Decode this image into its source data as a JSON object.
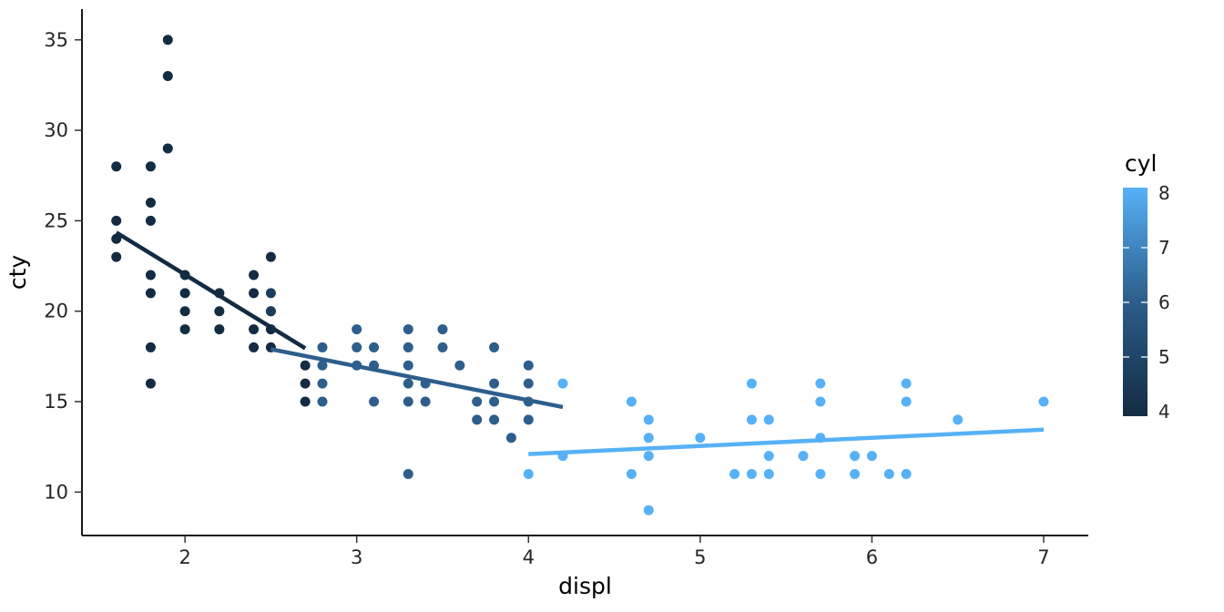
{
  "chart_data": {
    "type": "scatter",
    "title": "",
    "xlabel": "displ",
    "ylabel": "cty",
    "x_ticks": [
      2,
      3,
      4,
      5,
      6,
      7
    ],
    "y_ticks": [
      10,
      15,
      20,
      25,
      30,
      35
    ],
    "x_range": [
      1.4,
      7.26
    ],
    "y_range": [
      7.6,
      36.7
    ],
    "grid": false,
    "theme": {
      "background": "#ffffff",
      "axis_line_color": "#1a1a1a",
      "tick_color": "#333333",
      "tick_label_color": "#262626",
      "axis_title_color": "#000000"
    },
    "legend": {
      "title": "cyl",
      "type": "colorbar",
      "position": "right",
      "ticks": [
        4,
        5,
        6,
        7,
        8
      ],
      "low_value": 4,
      "high_value": 8,
      "low_color": "#132B43",
      "mid_color": "#2C5D8A",
      "high_color": "#56B1F7"
    },
    "series": [
      {
        "name": "cyl-4",
        "cyl": 4,
        "color": "#132B43",
        "points": [
          [
            1.6,
            23
          ],
          [
            1.6,
            24
          ],
          [
            1.6,
            25
          ],
          [
            1.6,
            28
          ],
          [
            1.8,
            16
          ],
          [
            1.8,
            18
          ],
          [
            1.8,
            21
          ],
          [
            1.8,
            22
          ],
          [
            1.8,
            25
          ],
          [
            1.8,
            26
          ],
          [
            1.8,
            28
          ],
          [
            1.9,
            29
          ],
          [
            1.9,
            33
          ],
          [
            1.9,
            35
          ],
          [
            2.0,
            19
          ],
          [
            2.0,
            20
          ],
          [
            2.0,
            21
          ],
          [
            2.0,
            22
          ],
          [
            2.2,
            19
          ],
          [
            2.2,
            20
          ],
          [
            2.2,
            21
          ],
          [
            2.4,
            18
          ],
          [
            2.4,
            19
          ],
          [
            2.4,
            21
          ],
          [
            2.4,
            22
          ],
          [
            2.5,
            18
          ],
          [
            2.5,
            19
          ],
          [
            2.5,
            20
          ],
          [
            2.5,
            23
          ],
          [
            2.7,
            15
          ],
          [
            2.7,
            16
          ],
          [
            2.7,
            17
          ]
        ]
      },
      {
        "name": "cyl-5",
        "cyl": 5,
        "color": "#1C3E5C",
        "points": [
          [
            2.5,
            20
          ],
          [
            2.5,
            21
          ]
        ]
      },
      {
        "name": "cyl-6",
        "cyl": 6,
        "color": "#2D5E8C",
        "points": [
          [
            2.8,
            15
          ],
          [
            2.8,
            16
          ],
          [
            2.8,
            17
          ],
          [
            2.8,
            18
          ],
          [
            3.0,
            17
          ],
          [
            3.0,
            18
          ],
          [
            3.0,
            19
          ],
          [
            3.1,
            15
          ],
          [
            3.1,
            17
          ],
          [
            3.1,
            18
          ],
          [
            3.3,
            11
          ],
          [
            3.3,
            15
          ],
          [
            3.3,
            16
          ],
          [
            3.3,
            17
          ],
          [
            3.3,
            18
          ],
          [
            3.3,
            19
          ],
          [
            3.4,
            15
          ],
          [
            3.4,
            16
          ],
          [
            3.5,
            18
          ],
          [
            3.5,
            19
          ],
          [
            3.6,
            17
          ],
          [
            3.7,
            14
          ],
          [
            3.7,
            15
          ],
          [
            3.8,
            14
          ],
          [
            3.8,
            15
          ],
          [
            3.8,
            16
          ],
          [
            3.8,
            18
          ],
          [
            3.9,
            13
          ],
          [
            4.0,
            14
          ],
          [
            4.0,
            15
          ],
          [
            4.0,
            16
          ],
          [
            4.0,
            17
          ]
        ]
      },
      {
        "name": "cyl-8",
        "cyl": 8,
        "color": "#56B1F7",
        "points": [
          [
            4.0,
            11
          ],
          [
            4.2,
            12
          ],
          [
            4.2,
            16
          ],
          [
            4.6,
            11
          ],
          [
            4.6,
            15
          ],
          [
            4.7,
            9
          ],
          [
            4.7,
            12
          ],
          [
            4.7,
            13
          ],
          [
            4.7,
            14
          ],
          [
            5.0,
            13
          ],
          [
            5.2,
            11
          ],
          [
            5.3,
            11
          ],
          [
            5.3,
            14
          ],
          [
            5.3,
            16
          ],
          [
            5.4,
            11
          ],
          [
            5.4,
            12
          ],
          [
            5.4,
            14
          ],
          [
            5.6,
            12
          ],
          [
            5.7,
            11
          ],
          [
            5.7,
            13
          ],
          [
            5.7,
            15
          ],
          [
            5.7,
            16
          ],
          [
            5.9,
            11
          ],
          [
            5.9,
            12
          ],
          [
            6.0,
            12
          ],
          [
            6.1,
            11
          ],
          [
            6.2,
            11
          ],
          [
            6.2,
            15
          ],
          [
            6.2,
            16
          ],
          [
            6.5,
            14
          ],
          [
            7.0,
            15
          ]
        ]
      }
    ],
    "smooth_lines": [
      {
        "name": "trend-cyl-4",
        "cyl": 4,
        "color": "#132B43",
        "from": [
          1.6,
          24.35
        ],
        "to": [
          2.7,
          17.95
        ]
      },
      {
        "name": "trend-cyl-6",
        "cyl": 6,
        "color": "#2D5E8C",
        "from": [
          2.5,
          17.9
        ],
        "to": [
          4.2,
          14.7
        ]
      },
      {
        "name": "trend-cyl-8",
        "cyl": 8,
        "color": "#56B1F7",
        "from": [
          4.0,
          12.1
        ],
        "to": [
          7.0,
          13.45
        ]
      }
    ]
  }
}
